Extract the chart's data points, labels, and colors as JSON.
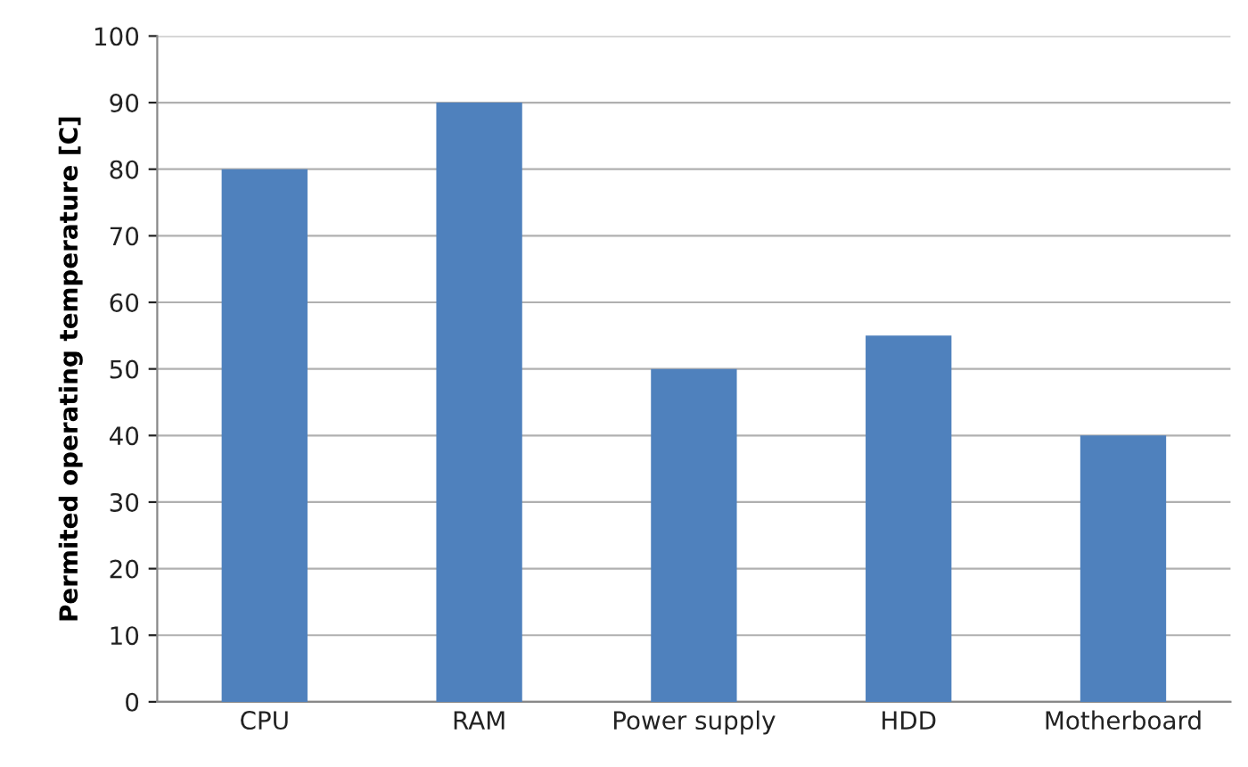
{
  "chart_data": {
    "type": "bar",
    "categories": [
      "CPU",
      "RAM",
      "Power supply",
      "HDD",
      "Motherboard"
    ],
    "values": [
      80,
      90,
      50,
      55,
      40
    ],
    "color": "#4f81bd",
    "ylabel": "Permited operating temperature [C]",
    "ylim": [
      0,
      100
    ],
    "yticks": [
      0,
      10,
      20,
      30,
      40,
      50,
      60,
      70,
      80,
      90,
      100
    ],
    "grid": "y",
    "legend": false
  }
}
